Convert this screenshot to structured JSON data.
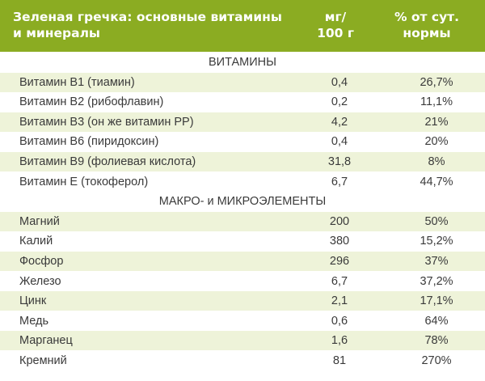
{
  "header": {
    "name_line1": "Зеленая гречка: основные витамины",
    "name_line2": "и минералы",
    "mg_line1": "мг/",
    "mg_line2": "100 г",
    "pct_line1": "% от сут.",
    "pct_line2": "нормы"
  },
  "sections": [
    {
      "title": "ВИТАМИНЫ",
      "rows": [
        {
          "name": "Витамин В1 (тиамин)",
          "mg": "0,4",
          "pct": "26,7%"
        },
        {
          "name": "Витамин В2 (рибофлавин)",
          "mg": "0,2",
          "pct": "11,1%"
        },
        {
          "name": "Витамин В3 (он же витамин РР)",
          "mg": "4,2",
          "pct": "21%"
        },
        {
          "name": "Витамин В6 (пиридоксин)",
          "mg": "0,4",
          "pct": "20%"
        },
        {
          "name": "Витамин В9 (фолиевая кислота)",
          "mg": "31,8",
          "pct": "8%"
        },
        {
          "name": "Витамин Е (токоферол)",
          "mg": "6,7",
          "pct": "44,7%"
        }
      ]
    },
    {
      "title": "МАКРО- и МИКРОЭЛЕМЕНТЫ",
      "rows": [
        {
          "name": "Магний",
          "mg": "200",
          "pct": "50%"
        },
        {
          "name": "Калий",
          "mg": "380",
          "pct": "15,2%"
        },
        {
          "name": "Фосфор",
          "mg": "296",
          "pct": "37%"
        },
        {
          "name": "Железо",
          "mg": "6,7",
          "pct": "37,2%"
        },
        {
          "name": "Цинк",
          "mg": "2,1",
          "pct": "17,1%"
        },
        {
          "name": "Медь",
          "mg": "0,6",
          "pct": "64%"
        },
        {
          "name": "Марганец",
          "mg": "1,6",
          "pct": "78%"
        },
        {
          "name": "Кремний",
          "mg": "81",
          "pct": "270%"
        }
      ]
    }
  ]
}
